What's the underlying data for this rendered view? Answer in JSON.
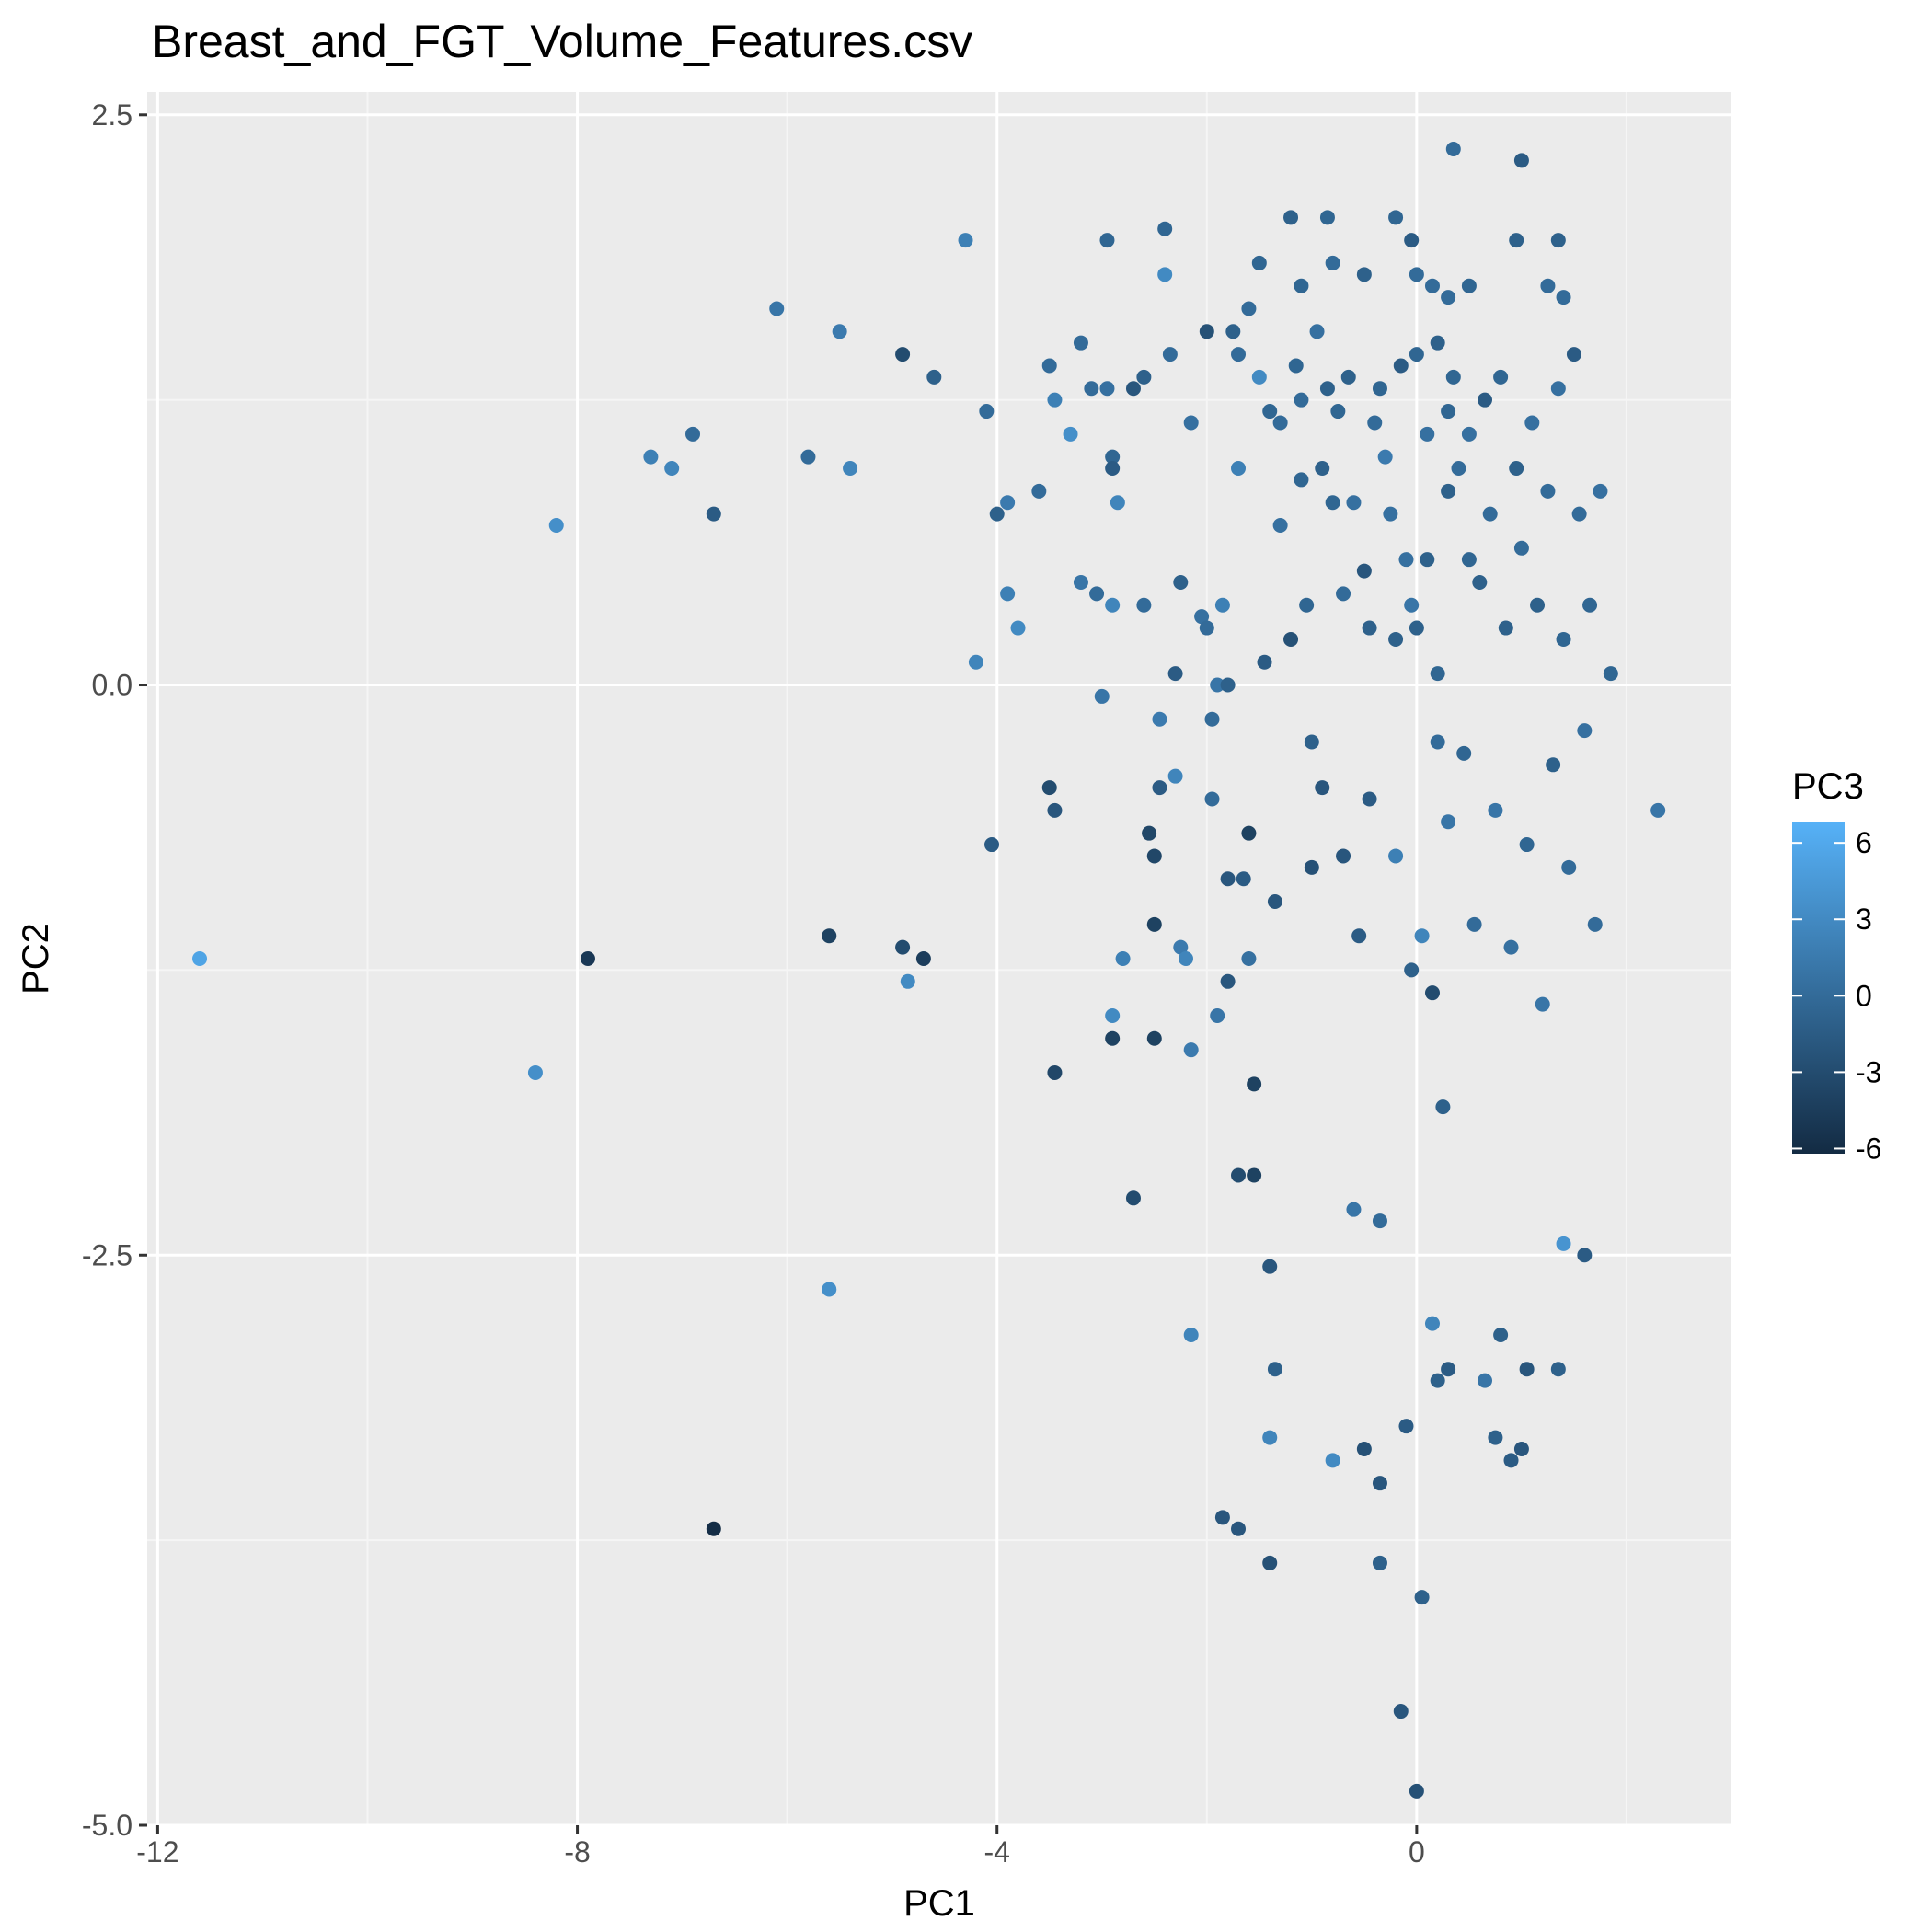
{
  "chart_data": {
    "type": "scatter",
    "title": "Breast_and_FGT_Volume_Features.csv",
    "xlabel": "PC1",
    "ylabel": "PC2",
    "xlim": [
      -12.1,
      3.0
    ],
    "ylim": [
      -5.0,
      2.6
    ],
    "x_ticks": [
      -12,
      -8,
      -4,
      0
    ],
    "x_tick_labels": [
      "-12",
      "-8",
      "-4",
      "0"
    ],
    "y_ticks": [
      -5.0,
      -2.5,
      0.0,
      2.5
    ],
    "y_tick_labels": [
      "-5.0",
      "-2.5",
      "0.0",
      "2.5"
    ],
    "grid": true,
    "colors": {
      "panel_background": "#ebebeb",
      "grid_major": "#ffffff",
      "grid_minor": "#f5f5f5",
      "color_low": "#132b43",
      "color_high": "#56b1f7"
    },
    "legend": {
      "title": "PC3",
      "position": "right",
      "range": [
        -6.2,
        6.8
      ],
      "breaks": [
        6,
        3,
        0,
        -3,
        -6
      ],
      "labels": [
        "6",
        "3",
        "0",
        "-3",
        "-6"
      ]
    },
    "points": [
      [
        -11.6,
        -1.2,
        5.5
      ],
      [
        -8.4,
        -1.7,
        3.5
      ],
      [
        -8.2,
        0.7,
        3.5
      ],
      [
        -7.9,
        -1.2,
        -5
      ],
      [
        -7.3,
        1.0,
        2
      ],
      [
        -7.1,
        0.95,
        2.5
      ],
      [
        -6.9,
        1.1,
        0
      ],
      [
        -6.7,
        0.75,
        -1.5
      ],
      [
        -6.7,
        -3.7,
        -6
      ],
      [
        -6.1,
        1.65,
        1
      ],
      [
        -5.8,
        1.0,
        0
      ],
      [
        -5.6,
        -1.1,
        -4
      ],
      [
        -5.6,
        -2.65,
        3.5
      ],
      [
        -5.5,
        1.55,
        1.5
      ],
      [
        -5.4,
        0.95,
        2.5
      ],
      [
        -4.9,
        1.45,
        -3
      ],
      [
        -4.9,
        -1.15,
        -3
      ],
      [
        -4.85,
        -1.3,
        3
      ],
      [
        -4.7,
        -1.2,
        -4.5
      ],
      [
        -4.6,
        1.35,
        -1
      ],
      [
        -4.3,
        1.95,
        2
      ],
      [
        -4.2,
        0.1,
        2.5
      ],
      [
        -4.1,
        1.2,
        0
      ],
      [
        -4.05,
        -0.7,
        -1.5
      ],
      [
        -4.0,
        0.75,
        -1
      ],
      [
        -3.9,
        0.8,
        1.5
      ],
      [
        -3.9,
        0.4,
        2
      ],
      [
        -3.8,
        0.25,
        3
      ],
      [
        -3.6,
        0.85,
        0
      ],
      [
        -3.5,
        1.4,
        0
      ],
      [
        -3.5,
        -0.45,
        -3
      ],
      [
        -3.45,
        1.25,
        2
      ],
      [
        -3.45,
        -0.55,
        -2
      ],
      [
        -3.45,
        -1.7,
        -3.5
      ],
      [
        -3.3,
        1.1,
        3.5
      ],
      [
        -3.2,
        1.5,
        0
      ],
      [
        -3.2,
        0.45,
        1
      ],
      [
        -3.1,
        1.3,
        0
      ],
      [
        -3.05,
        0.4,
        0
      ],
      [
        -3.0,
        -0.05,
        1
      ],
      [
        -2.95,
        1.95,
        -0.5
      ],
      [
        -2.95,
        1.3,
        0.5
      ],
      [
        -2.9,
        0.35,
        2.5
      ],
      [
        -2.9,
        1.0,
        -0.5
      ],
      [
        -2.9,
        0.95,
        -1.5
      ],
      [
        -2.9,
        -1.45,
        3
      ],
      [
        -2.9,
        -1.55,
        -4
      ],
      [
        -2.85,
        0.8,
        2.5
      ],
      [
        -2.8,
        -1.2,
        2
      ],
      [
        -2.7,
        1.3,
        -2
      ],
      [
        -2.6,
        1.35,
        -1
      ],
      [
        -2.6,
        0.35,
        0
      ],
      [
        -2.55,
        -0.65,
        -3.5
      ],
      [
        -2.5,
        -0.75,
        -3.5
      ],
      [
        -2.5,
        -1.05,
        -4
      ],
      [
        -2.5,
        -1.55,
        -4
      ],
      [
        -2.45,
        -0.15,
        1.5
      ],
      [
        -2.45,
        -0.45,
        -1.5
      ],
      [
        -2.4,
        2.0,
        -0.5
      ],
      [
        -2.4,
        1.8,
        3
      ],
      [
        -2.35,
        1.45,
        0
      ],
      [
        -2.3,
        0.05,
        -1.5
      ],
      [
        -2.3,
        -0.4,
        2.5
      ],
      [
        -2.25,
        0.45,
        -1
      ],
      [
        -2.25,
        -1.15,
        1.5
      ],
      [
        -2.2,
        -1.2,
        2.5
      ],
      [
        -2.15,
        1.15,
        0.5
      ],
      [
        -2.05,
        0.3,
        0.5
      ],
      [
        -2.0,
        0.25,
        0
      ],
      [
        -2.0,
        1.55,
        -2.5
      ],
      [
        -1.95,
        -0.15,
        0
      ],
      [
        -1.95,
        -0.5,
        0
      ],
      [
        -1.9,
        0.0,
        1
      ],
      [
        -1.9,
        -1.45,
        1
      ],
      [
        -1.85,
        0.35,
        2
      ],
      [
        -1.8,
        -0.85,
        -2
      ],
      [
        -1.8,
        -0.0,
        -1
      ],
      [
        -1.8,
        -1.3,
        -2
      ],
      [
        -1.75,
        1.55,
        -1
      ],
      [
        -1.7,
        1.45,
        0
      ],
      [
        -1.7,
        0.95,
        2
      ],
      [
        -1.65,
        -0.85,
        -1.5
      ],
      [
        -1.6,
        -1.2,
        0.5
      ],
      [
        -1.6,
        -0.65,
        -4
      ],
      [
        -1.55,
        -1.75,
        -4
      ],
      [
        -1.55,
        -2.15,
        -4
      ],
      [
        -1.5,
        1.35,
        3
      ],
      [
        -1.45,
        0.1,
        -1.5
      ],
      [
        -1.4,
        1.2,
        -0.5
      ],
      [
        -1.35,
        -0.95,
        -2
      ],
      [
        -1.3,
        1.15,
        0
      ],
      [
        -1.3,
        0.7,
        0.5
      ],
      [
        -1.2,
        0.2,
        -2.5
      ],
      [
        -1.15,
        1.4,
        -0.5
      ],
      [
        -1.1,
        1.25,
        0
      ],
      [
        -1.1,
        0.9,
        -0.5
      ],
      [
        -1.05,
        0.35,
        -0.5
      ],
      [
        -1.0,
        -0.25,
        -1
      ],
      [
        -1.0,
        -0.8,
        -2.5
      ],
      [
        -0.95,
        1.55,
        0.5
      ],
      [
        -0.9,
        0.95,
        -1
      ],
      [
        -0.9,
        -0.45,
        -2
      ],
      [
        -0.85,
        1.3,
        -1
      ],
      [
        -0.8,
        0.8,
        -0.5
      ],
      [
        -0.75,
        1.2,
        -0.5
      ],
      [
        -0.7,
        0.4,
        0
      ],
      [
        -0.7,
        -0.75,
        -2
      ],
      [
        -0.65,
        1.35,
        -1
      ],
      [
        -0.6,
        0.8,
        0.5
      ],
      [
        -0.55,
        -1.1,
        -1.5
      ],
      [
        -0.5,
        0.5,
        -2
      ],
      [
        -0.45,
        0.25,
        -1
      ],
      [
        -0.45,
        -0.5,
        -1.5
      ],
      [
        -0.4,
        1.15,
        0
      ],
      [
        -0.35,
        1.3,
        -0.5
      ],
      [
        -0.3,
        1.0,
        1.5
      ],
      [
        -0.25,
        0.75,
        0.5
      ],
      [
        -0.2,
        0.2,
        -1
      ],
      [
        -0.2,
        -0.75,
        2
      ],
      [
        -0.15,
        1.4,
        -1.5
      ],
      [
        -0.1,
        0.55,
        0.5
      ],
      [
        -0.05,
        -1.25,
        -1
      ],
      [
        -0.05,
        0.35,
        1
      ],
      [
        0.0,
        1.45,
        -0.5
      ],
      [
        0.0,
        0.25,
        -1
      ],
      [
        0.05,
        -1.1,
        2.5
      ],
      [
        0.1,
        1.1,
        0.5
      ],
      [
        0.1,
        0.55,
        -1
      ],
      [
        0.15,
        -1.35,
        -3
      ],
      [
        0.2,
        1.5,
        -1
      ],
      [
        0.2,
        0.05,
        -0.5
      ],
      [
        0.2,
        -0.25,
        0
      ],
      [
        0.25,
        -1.85,
        -1
      ],
      [
        0.3,
        1.2,
        -0.5
      ],
      [
        0.3,
        0.85,
        -1
      ],
      [
        0.3,
        -0.6,
        1
      ],
      [
        0.35,
        1.35,
        -0.5
      ],
      [
        0.4,
        0.95,
        0
      ],
      [
        0.45,
        -0.3,
        -0.5
      ],
      [
        0.5,
        1.1,
        0.5
      ],
      [
        0.5,
        0.55,
        -0.5
      ],
      [
        0.55,
        -1.05,
        0
      ],
      [
        0.6,
        0.45,
        -1
      ],
      [
        0.65,
        1.25,
        -1.5
      ],
      [
        0.7,
        0.75,
        0
      ],
      [
        0.75,
        -0.55,
        1
      ],
      [
        0.8,
        1.35,
        -0.5
      ],
      [
        0.85,
        0.25,
        -1
      ],
      [
        0.9,
        -1.15,
        0.5
      ],
      [
        0.95,
        0.95,
        -1
      ],
      [
        1.0,
        0.6,
        0
      ],
      [
        1.05,
        -0.7,
        -0.5
      ],
      [
        1.1,
        1.15,
        0.5
      ],
      [
        1.15,
        0.35,
        -1
      ],
      [
        1.2,
        -1.4,
        1
      ],
      [
        1.25,
        0.85,
        0
      ],
      [
        1.3,
        -0.35,
        -1
      ],
      [
        1.35,
        1.3,
        0.5
      ],
      [
        1.4,
        0.2,
        -0.5
      ],
      [
        1.45,
        -0.8,
        0
      ],
      [
        1.5,
        1.45,
        -1.5
      ],
      [
        1.55,
        0.75,
        0
      ],
      [
        1.6,
        -0.2,
        0.5
      ],
      [
        1.65,
        0.35,
        -0.5
      ],
      [
        1.7,
        -1.05,
        0
      ],
      [
        1.75,
        0.85,
        0.5
      ],
      [
        1.85,
        0.05,
        -0.5
      ],
      [
        0.35,
        2.35,
        0
      ],
      [
        1.0,
        2.3,
        -1.5
      ],
      [
        -0.85,
        2.05,
        -0.5
      ],
      [
        -1.2,
        2.05,
        -1
      ],
      [
        -0.2,
        2.05,
        -0.5
      ],
      [
        -0.05,
        1.95,
        -1.5
      ],
      [
        0.95,
        1.95,
        -1
      ],
      [
        1.35,
        1.95,
        -1
      ],
      [
        -0.8,
        1.85,
        0
      ],
      [
        -0.5,
        1.8,
        -1
      ],
      [
        0.0,
        1.8,
        0
      ],
      [
        0.5,
        1.75,
        -0.5
      ],
      [
        1.25,
        1.75,
        0
      ],
      [
        -1.1,
        1.75,
        -0.5
      ],
      [
        -1.5,
        1.85,
        -0.5
      ],
      [
        1.4,
        1.7,
        0
      ],
      [
        -1.6,
        1.65,
        0
      ],
      [
        0.3,
        1.7,
        0
      ],
      [
        0.15,
        1.75,
        0
      ],
      [
        2.3,
        -0.55,
        1
      ],
      [
        0.15,
        -2.8,
        2.5
      ],
      [
        -0.1,
        -3.25,
        -1.5
      ],
      [
        -0.35,
        -3.5,
        -2
      ],
      [
        -0.5,
        -3.35,
        -2.5
      ],
      [
        -0.8,
        -3.4,
        3
      ],
      [
        0.05,
        -4.0,
        -1
      ],
      [
        0.2,
        -3.05,
        -1
      ],
      [
        -1.4,
        -3.3,
        2.5
      ],
      [
        -1.35,
        -3.0,
        -1
      ],
      [
        -1.4,
        -2.55,
        -2
      ],
      [
        -1.85,
        -3.65,
        -2
      ],
      [
        -1.7,
        -3.7,
        -2
      ],
      [
        -1.4,
        -3.85,
        -2.5
      ],
      [
        -0.35,
        -3.85,
        -1
      ],
      [
        -0.15,
        -4.5,
        -2
      ],
      [
        0.0,
        -4.85,
        -2.5
      ],
      [
        0.3,
        -3.0,
        -1.5
      ],
      [
        0.65,
        -3.05,
        1
      ],
      [
        0.8,
        -2.85,
        -1
      ],
      [
        1.05,
        -3.0,
        -2
      ],
      [
        0.75,
        -3.3,
        -1
      ],
      [
        1.0,
        -3.35,
        -2
      ],
      [
        0.9,
        -3.4,
        -1.5
      ],
      [
        1.4,
        -2.45,
        4
      ],
      [
        1.6,
        -2.5,
        -1.5
      ],
      [
        1.35,
        -3.0,
        -1
      ],
      [
        -2.15,
        -2.85,
        2.5
      ],
      [
        -2.15,
        -1.6,
        1.5
      ],
      [
        -1.7,
        -2.15,
        -3
      ],
      [
        -2.7,
        -2.25,
        -3
      ],
      [
        -0.35,
        -2.35,
        0
      ],
      [
        -0.6,
        -2.3,
        1
      ]
    ]
  }
}
